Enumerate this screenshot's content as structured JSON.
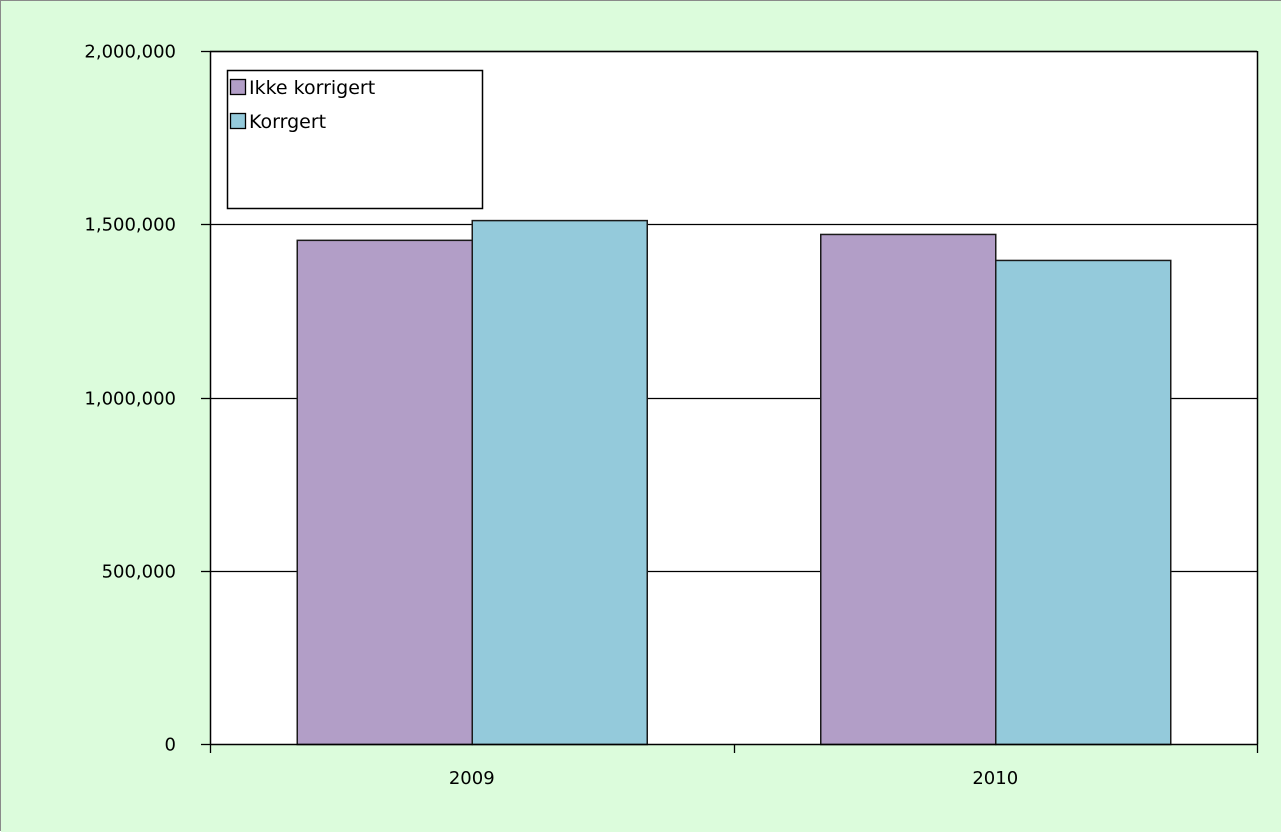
{
  "chart_data": {
    "type": "bar",
    "title": "",
    "xlabel": "",
    "ylabel": "",
    "categories": [
      "2009",
      "2010"
    ],
    "series": [
      {
        "name": "Ikke korrigert",
        "values": [
          1455000,
          1472000
        ],
        "color": "#b29ec7"
      },
      {
        "name": "Korrgert",
        "values": [
          1512000,
          1397000
        ],
        "color": "#94cadb"
      }
    ],
    "ylim": [
      0,
      2000000
    ],
    "yticks": [
      0,
      500000,
      1000000,
      1500000,
      2000000
    ],
    "ytick_labels": [
      "0",
      "500,000",
      "1,000,000",
      "1,500,000",
      "2,000,000"
    ],
    "grid": true,
    "legend_position": "top-left",
    "background_color": "#dcfcdc",
    "plot_background_color": "#ffffff"
  }
}
